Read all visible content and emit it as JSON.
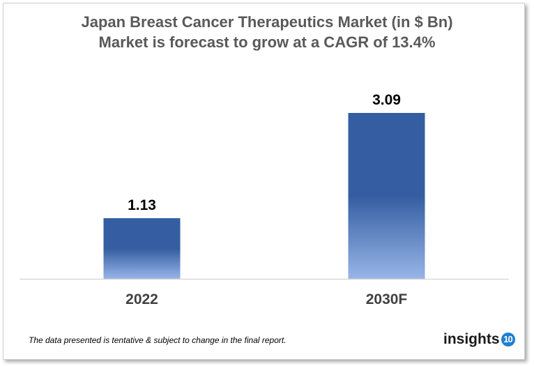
{
  "chart_data": {
    "type": "bar",
    "title": "Japan Breast Cancer Therapeutics Market (in $ Bn)",
    "subtitle": "Market is forecast to grow at a CAGR of 13.4%",
    "categories": [
      "2022",
      "2030F"
    ],
    "values": [
      1.13,
      3.09
    ],
    "data_labels": [
      "1.13",
      "3.09"
    ],
    "xlabel": "",
    "ylabel": "",
    "ylim": [
      0,
      3.09
    ],
    "grid": false,
    "legend": "none",
    "colors": {
      "bar_top": "#345EA1",
      "bar_bottom": "#98B5E8",
      "title": "#595959"
    }
  },
  "footnote": "The data presented is tentative & subject to change in the final report.",
  "logo": {
    "text": "insights",
    "badge": "10"
  }
}
